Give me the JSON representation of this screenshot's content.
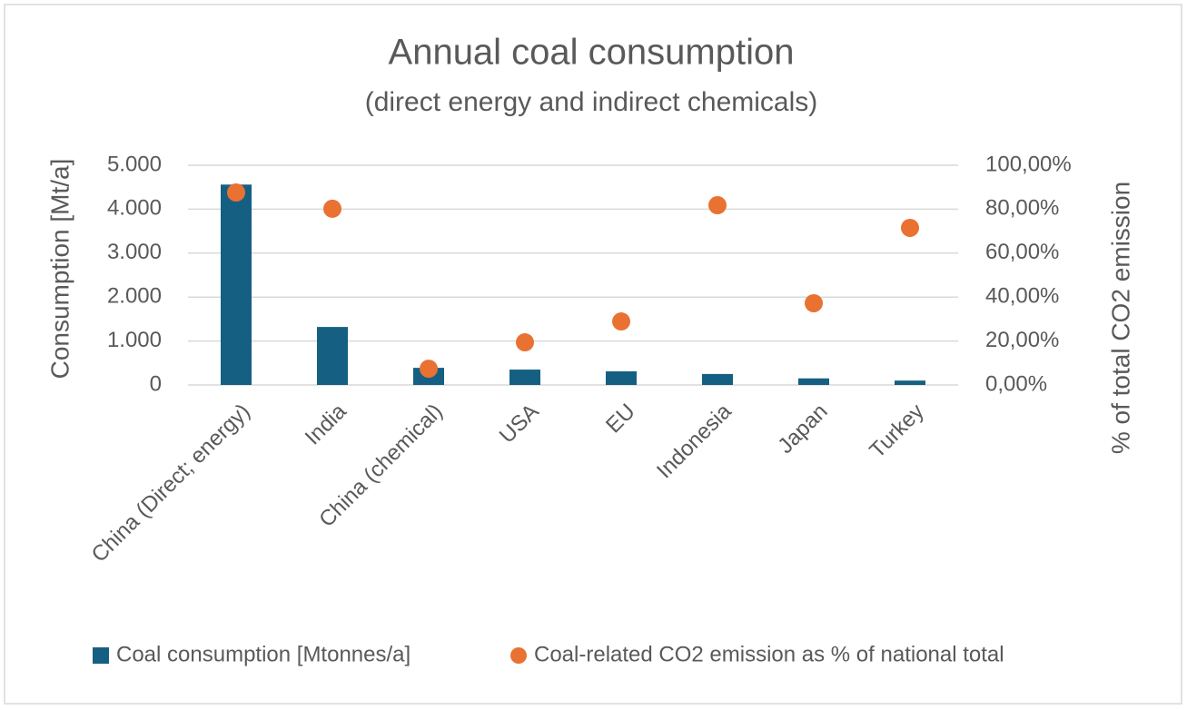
{
  "chart_data": {
    "type": "bar",
    "title": "Annual coal consumption",
    "subtitle": "(direct energy and indirect chemicals)",
    "y_label": "Consumption [Mt/a]",
    "y2_label": "% of total CO2 emission",
    "categories": [
      "China (Direct; energy)",
      "India",
      "China (chemical)",
      "USA",
      "EU",
      "Indonesia",
      "Japan",
      "Turkey"
    ],
    "series": [
      {
        "name": "Coal consumption [Mtonnes/a]",
        "type": "bar",
        "color": "#156082",
        "values": [
          4560,
          1320,
          390,
          350,
          310,
          250,
          150,
          100
        ]
      },
      {
        "name": "Coal-related CO2 emission as % of national total",
        "type": "scatter",
        "axis": "y2",
        "color": "#e97132",
        "values": [
          87.6,
          80.2,
          7.4,
          19.4,
          28.9,
          81.8,
          37.2,
          71.5
        ]
      }
    ],
    "ylim": [
      0,
      5000
    ],
    "yticks": [
      0,
      {
        "value": 1000,
        "label": "1.000"
      },
      {
        "value": 2000,
        "label": "2.000"
      },
      {
        "value": 3000,
        "label": "3.000"
      },
      {
        "value": 4000,
        "label": "4.000"
      },
      {
        "value": 5000,
        "label": "5.000"
      }
    ],
    "y2lim": [
      0,
      100
    ],
    "y2ticks": [
      {
        "value": 0,
        "label": "0,00%"
      },
      {
        "value": 20,
        "label": "20,00%"
      },
      {
        "value": 40,
        "label": "40,00%"
      },
      {
        "value": 60,
        "label": "60,00%"
      },
      {
        "value": 80,
        "label": "80,00%"
      },
      {
        "value": 100,
        "label": "100,00%"
      }
    ],
    "grid": true,
    "legend": "bottom"
  }
}
